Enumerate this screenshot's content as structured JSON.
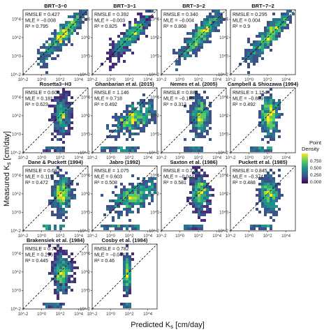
{
  "chart_data": {
    "type": "scatter",
    "variant": "hexbin density scatter panels",
    "xlabel": "Predicted K_s [cm/day]",
    "ylabel": "Measured K_s [cm/day]",
    "xlabel_main": "Predicted K",
    "xlabel_sub": "s",
    "xlabel_unit": " [cm/day]",
    "ylabel_main": "Measured K",
    "ylabel_sub": "s",
    "ylabel_unit": " [cm/day]",
    "scale": "log10",
    "xlim": [
      0.01,
      100000
    ],
    "ylim": [
      0.01,
      100000
    ],
    "x_ticks": [
      "10^-2",
      "10^0",
      "10^2",
      "10^4"
    ],
    "y_ticks": [
      "10^-2",
      "10^0",
      "10^2",
      "10^4"
    ],
    "reference_line": "1:1 dashed",
    "legend": {
      "title_line1": "Point",
      "title_line2": "Density",
      "placement": "right",
      "ticks": [
        "0.000",
        "0.250",
        "0.500",
        "0.750"
      ],
      "colormap": [
        "#440154",
        "#3b528b",
        "#21918c",
        "#5ec962",
        "#fde725"
      ]
    },
    "panels": [
      {
        "title": "BRT−3−0",
        "rmsle": "RMSLE = 0.427",
        "mle": "MLE = −0.008",
        "r2": "R² = 0.795",
        "pattern": "diag"
      },
      {
        "title": "BRT−3−1",
        "rmsle": "RMSLE = 0.392",
        "mle": "MLE = −0.003",
        "r2": "R² = 0.825",
        "pattern": "diag"
      },
      {
        "title": "BRT−3−2",
        "rmsle": "RMSLE = 0.340",
        "mle": "MLE = −0.004",
        "r2": "R² = 0.868",
        "pattern": "diag"
      },
      {
        "title": "BRT−7−2",
        "rmsle": "RMSLE = 0.295",
        "mle": "MLE = 0.004",
        "r2": "R² = 0.9",
        "pattern": "diag"
      },
      {
        "title": "Rosetta3−H3",
        "rmsle": "RMSLE = 0.600",
        "mle": "MLE = 0.181",
        "r2": "R² = 0.623",
        "pattern": "vertical"
      },
      {
        "title": "Ghanbarian et al. (2015)",
        "rmsle": "RMSLE = 1.146",
        "mle": "MLE = 0.718",
        "r2": "R² = 0.492",
        "pattern": "wide"
      },
      {
        "title": "Nemes et al. (2005)",
        "rmsle": "RMSLE = 0.888",
        "mle": "MLE = −0.185",
        "r2": "R² = 0.312",
        "pattern": "vertical"
      },
      {
        "title": "Campbell & Shiozawa (1994)",
        "rmsle": "RMSLE = 1.154",
        "mle": "MLE = −0.889",
        "r2": "R² = 0.492",
        "pattern": "vertical"
      },
      {
        "title": "Dane & Puckett (1994)",
        "rmsle": "RMSLE = 0.687",
        "mle": "MLE = 0.115",
        "r2": "R² = 0.472",
        "pattern": "vertical"
      },
      {
        "title": "Jabro (1992)",
        "rmsle": "RMSLE = 1.075",
        "mle": "MLE = 0.603",
        "r2": "R² = 0.508",
        "pattern": "wide"
      },
      {
        "title": "Saxton et al. (1986)",
        "rmsle": "RMSLE = 0.723",
        "mle": "MLE = −0.044",
        "r2": "R² = 0.581",
        "pattern": "vertical"
      },
      {
        "title": "Puckett et al. (1985)",
        "rmsle": "RMSLE = 0.845",
        "mle": "MLE = −0.374",
        "r2": "R² = 0.488",
        "pattern": "vertical"
      },
      {
        "title": "Brakensiek et al. (1984)",
        "rmsle": "RMSLE = 0.765",
        "mle": "MLE = 0.296",
        "r2": "R² = 0.445",
        "pattern": "vertical"
      },
      {
        "title": "Cosby et al. (1984)",
        "rmsle": "RMSLE = 0.782",
        "mle": "MLE = −0.044",
        "r2": "R² = 0.46",
        "pattern": "narrow"
      }
    ]
  }
}
